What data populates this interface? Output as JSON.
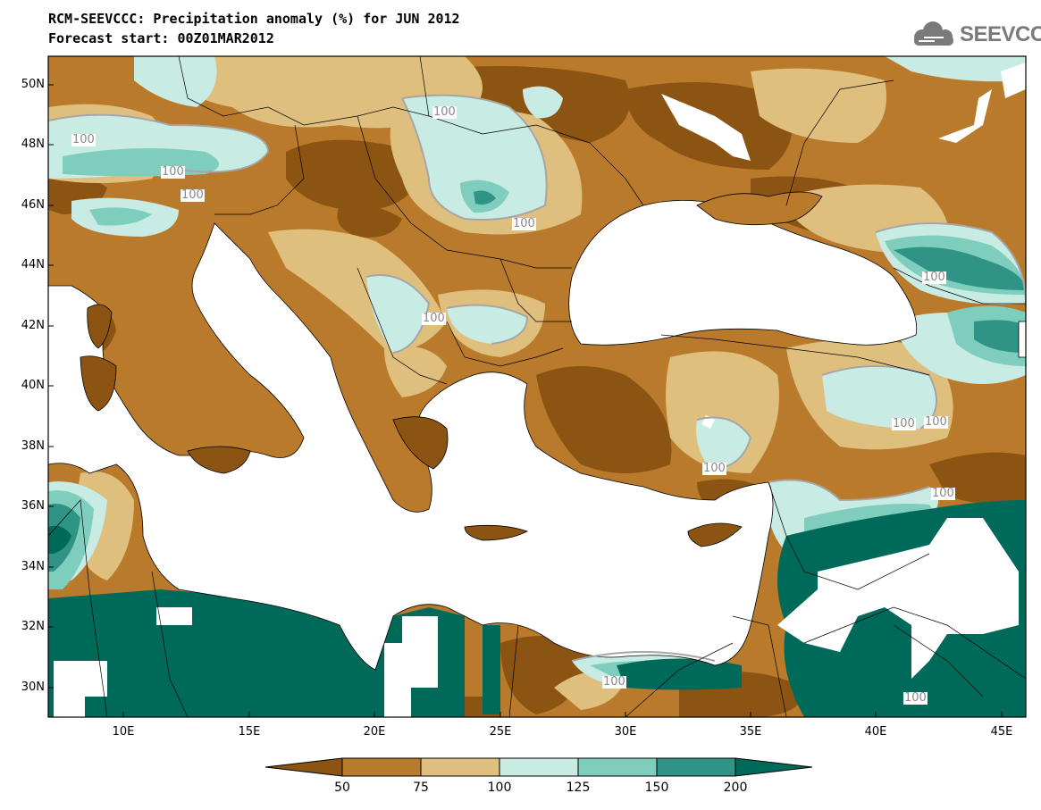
{
  "title": {
    "line1": "RCM-SEEVCCC: Precipitation anomaly (%) for JUN 2012",
    "line2": "Forecast start: 00Z01MAR2012"
  },
  "logo": {
    "text": "SEEVCCC",
    "icon": "cloud-icon"
  },
  "colors": {
    "c_lt50": "#8c5412",
    "c_50_75": "#b97a2c",
    "c_75_100": "#dfbf7e",
    "c_100_125": "#c8ece4",
    "c_125_150": "#7fcdbd",
    "c_150_200": "#2f9485",
    "c_gt200": "#006a5a",
    "contour": "#a6a6a6",
    "sea": "#ffffff"
  },
  "axes": {
    "lat_labels": [
      "50N",
      "48N",
      "46N",
      "44N",
      "42N",
      "40N",
      "38N",
      "36N",
      "34N",
      "32N",
      "30N"
    ],
    "lon_labels": [
      "10E",
      "15E",
      "20E",
      "25E",
      "30E",
      "35E",
      "40E",
      "45E"
    ],
    "lon_range": [
      7,
      46
    ],
    "lat_range": [
      29,
      51
    ]
  },
  "contour_labels": [
    "100",
    "100",
    "100",
    "100",
    "100",
    "100",
    "100",
    "100",
    "100",
    "100",
    "100",
    "100",
    "100",
    "100",
    "100",
    "100"
  ],
  "colorbar": {
    "ticks": [
      "50",
      "75",
      "100",
      "125",
      "150",
      "200"
    ]
  }
}
